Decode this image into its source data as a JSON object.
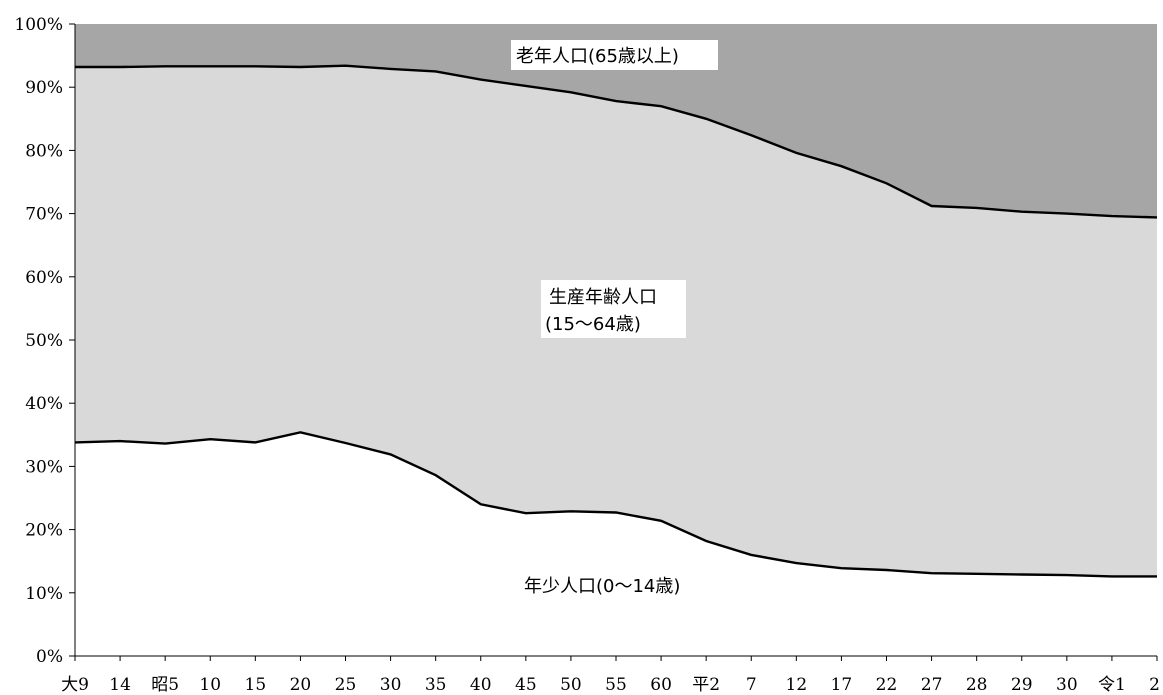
{
  "chart_data": {
    "type": "area",
    "stacked_percent": true,
    "categories": [
      "大9",
      "14",
      "昭5",
      "10",
      "15",
      "20",
      "25",
      "30",
      "35",
      "40",
      "45",
      "50",
      "55",
      "60",
      "平2",
      "7",
      "12",
      "17",
      "22",
      "27",
      "28",
      "29",
      "30",
      "令1",
      "2"
    ],
    "series": [
      {
        "name": "年少人口(0〜14歳)",
        "color": "#ffffff",
        "values": [
          33.8,
          34.0,
          33.6,
          34.3,
          33.8,
          35.4,
          33.7,
          31.9,
          28.6,
          24.0,
          22.6,
          22.9,
          22.7,
          21.4,
          18.2,
          16.0,
          14.7,
          13.9,
          13.6,
          13.1,
          13.0,
          12.9,
          12.8,
          12.6,
          12.6
        ]
      },
      {
        "name": "生産年齢人口(15〜64歳)",
        "color": "#d9d9d9",
        "values": [
          59.4,
          59.2,
          59.7,
          59.0,
          59.5,
          57.8,
          59.7,
          61.0,
          63.9,
          67.2,
          67.6,
          66.3,
          65.1,
          65.6,
          66.8,
          66.4,
          64.9,
          63.6,
          61.2,
          58.1,
          57.9,
          57.4,
          57.2,
          57.0,
          56.8
        ]
      },
      {
        "name": "老年人口(65歳以上)",
        "color": "#a6a6a6",
        "values": [
          6.8,
          6.8,
          6.7,
          6.7,
          6.7,
          6.8,
          6.6,
          7.1,
          7.5,
          8.8,
          9.8,
          10.8,
          12.2,
          13.0,
          15.0,
          17.6,
          20.4,
          22.5,
          25.2,
          28.8,
          29.1,
          29.7,
          30.0,
          30.4,
          30.6
        ]
      }
    ],
    "yticks": [
      "0%",
      "10%",
      "20%",
      "30%",
      "40%",
      "50%",
      "60%",
      "70%",
      "80%",
      "90%",
      "100%"
    ],
    "ylim": [
      0,
      100
    ],
    "grid": false
  }
}
